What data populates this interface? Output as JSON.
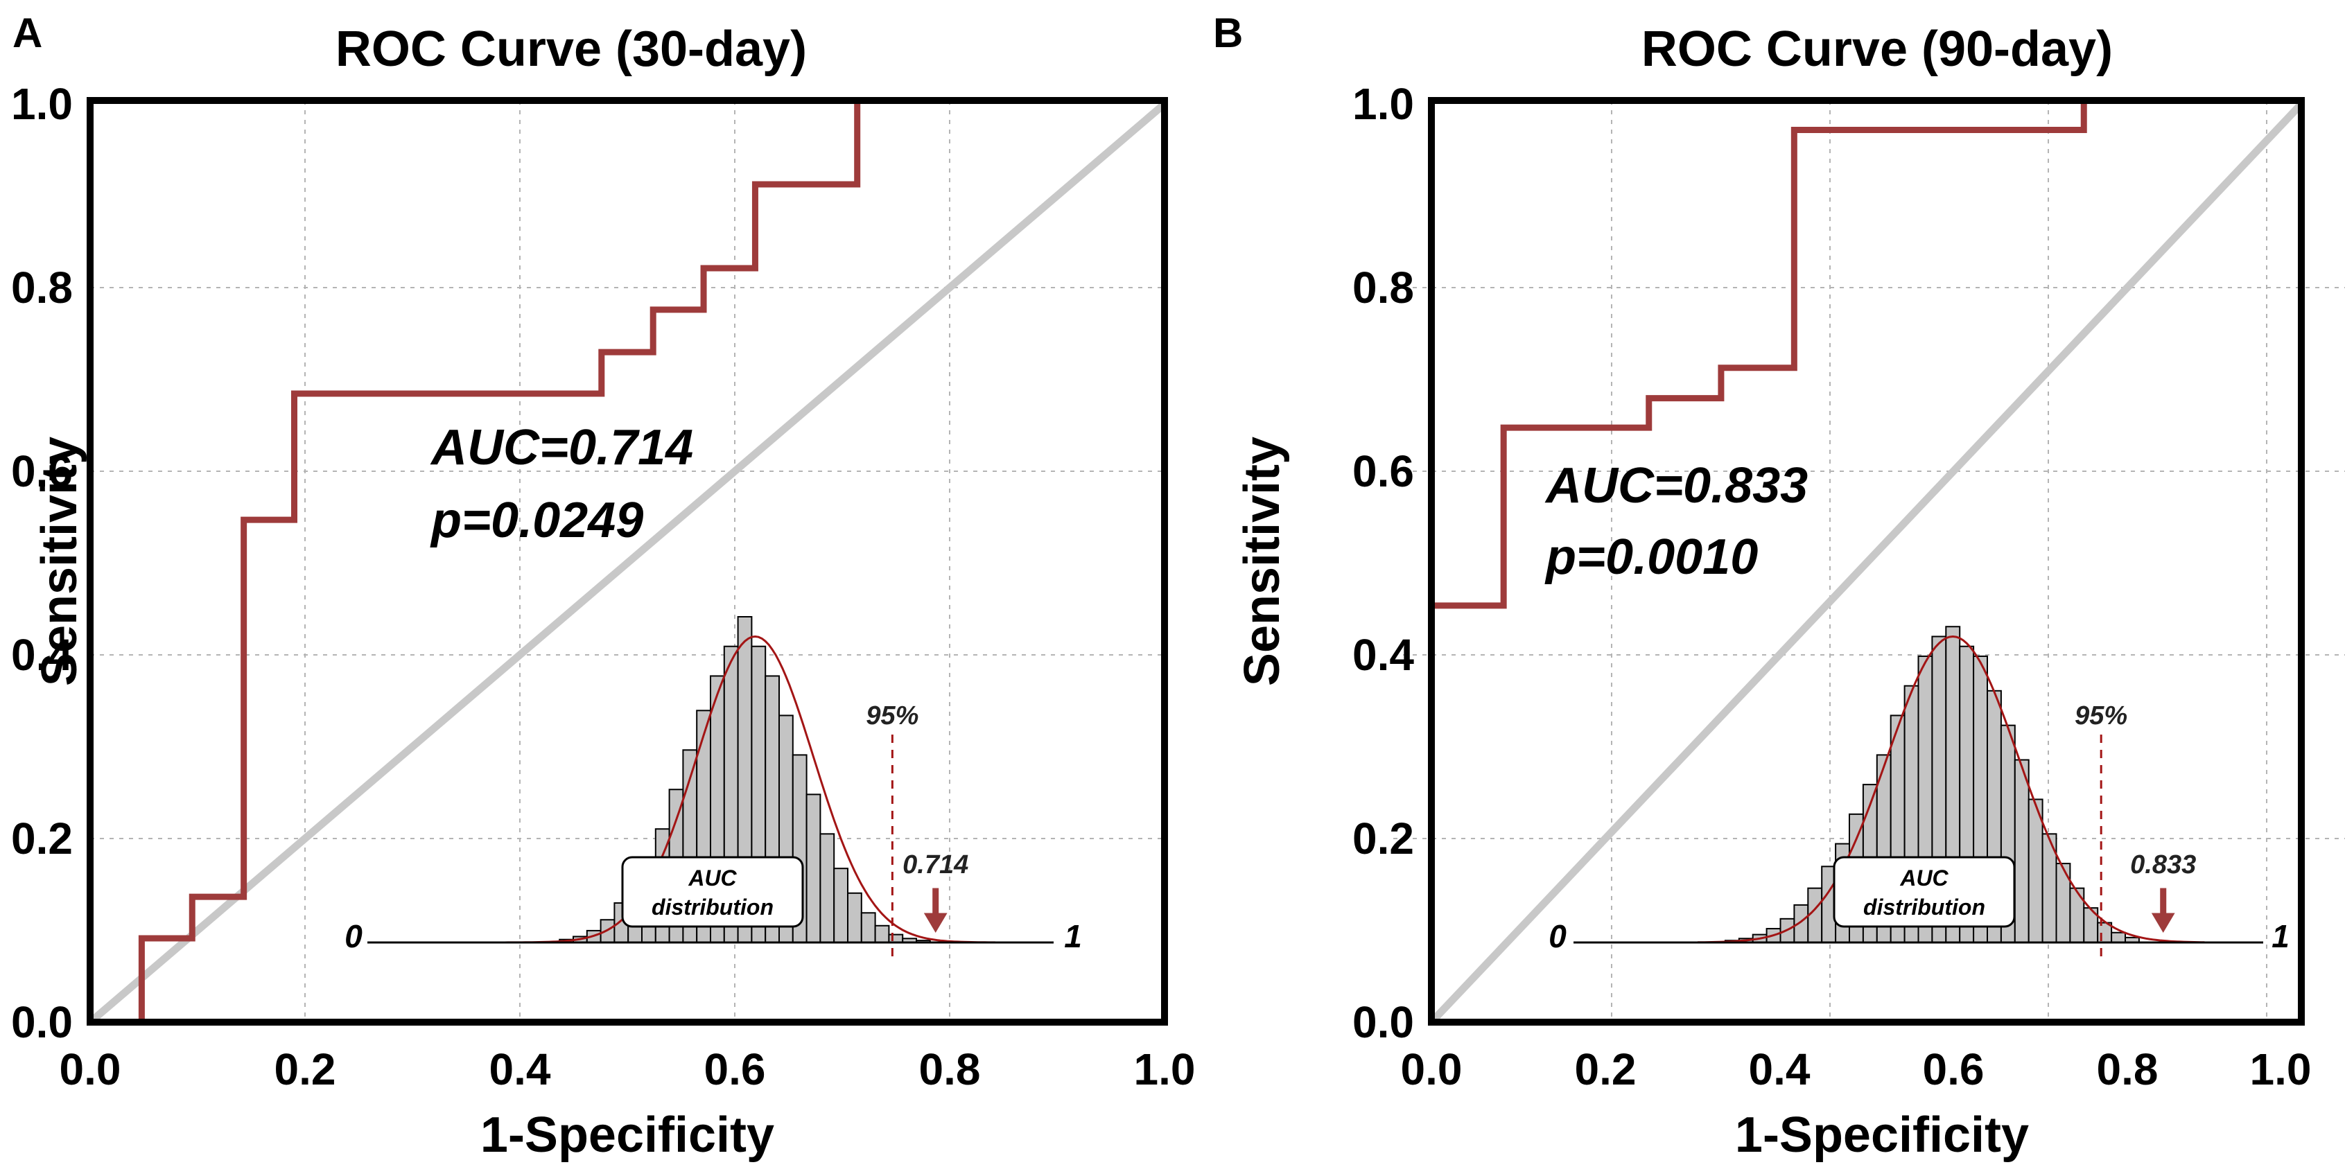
{
  "colors": {
    "roc": "#9e3b3b",
    "diagonal": "#c8c8c8",
    "grid": "#b4b4b4",
    "hist_fill": "#c4c4c4",
    "fit_curve": "#a31515",
    "marker": "#9e3b3b"
  },
  "chart_data": [
    {
      "panel": "A",
      "type": "line",
      "title": "ROC Curve (30-day)",
      "xlabel": "1-Specificity",
      "ylabel": "Sensitivity",
      "xlim": [
        0,
        1
      ],
      "ylim": [
        0,
        1
      ],
      "xticks": [
        "0.0",
        "0.2",
        "0.4",
        "0.6",
        "0.8",
        "1.0"
      ],
      "yticks": [
        "0.0",
        "0.2",
        "0.4",
        "0.6",
        "0.8",
        "1.0"
      ],
      "grid": true,
      "series": [
        {
          "name": "ROC",
          "x": [
            0.048,
            0.048,
            0.095,
            0.095,
            0.143,
            0.143,
            0.19,
            0.19,
            0.476,
            0.476,
            0.524,
            0.524,
            0.571,
            0.571,
            0.619,
            0.619,
            0.714,
            0.714,
            1.0
          ],
          "y": [
            0.0,
            0.091,
            0.091,
            0.136,
            0.136,
            0.545,
            0.545,
            0.682,
            0.682,
            0.727,
            0.727,
            0.773,
            0.773,
            0.818,
            0.818,
            0.909,
            0.909,
            1.0,
            1.0
          ]
        },
        {
          "name": "Reference",
          "x": [
            0,
            1
          ],
          "y": [
            0,
            1
          ]
        }
      ],
      "auc_label": "AUC=0.714",
      "p_label": "p=0.0249",
      "inset": {
        "box_line1": "AUC",
        "box_line2": "distribution",
        "left_label": "0",
        "right_label": "1",
        "percentile_label": "95%",
        "percentile_value": 0.765,
        "observed_label": "0.714",
        "observed_value": 0.828,
        "bin_centers": [
          0.29,
          0.31,
          0.33,
          0.35,
          0.37,
          0.39,
          0.41,
          0.43,
          0.45,
          0.47,
          0.49,
          0.51,
          0.53,
          0.55,
          0.57,
          0.59,
          0.61,
          0.63,
          0.65,
          0.67,
          0.69,
          0.71,
          0.73,
          0.75,
          0.77,
          0.79,
          0.81
        ],
        "bin_heights": [
          0.003,
          0.006,
          0.012,
          0.023,
          0.04,
          0.06,
          0.085,
          0.115,
          0.155,
          0.195,
          0.235,
          0.27,
          0.3,
          0.33,
          0.3,
          0.27,
          0.23,
          0.19,
          0.15,
          0.11,
          0.075,
          0.05,
          0.03,
          0.017,
          0.008,
          0.004,
          0.002
        ],
        "fit_mean": 0.565,
        "fit_sd": 0.085,
        "fit_peak": 0.31
      }
    },
    {
      "panel": "B",
      "type": "line",
      "title": "ROC Curve (90-day)",
      "xlabel": "1-Specificity",
      "ylabel": "Sensitivity",
      "xlim": [
        0,
        1
      ],
      "ylim": [
        0,
        1
      ],
      "xticks": [
        "0.0",
        "0.2",
        "0.4",
        "0.6",
        "0.8",
        "1.0"
      ],
      "yticks": [
        "0.0",
        "0.2",
        "0.4",
        "0.6",
        "0.8",
        "1.0"
      ],
      "grid": true,
      "series": [
        {
          "name": "ROC",
          "x": [
            0.0,
            0.0,
            0.083,
            0.083,
            0.25,
            0.25,
            0.333,
            0.333,
            0.417,
            0.417,
            0.75,
            0.75,
            1.0
          ],
          "y": [
            0.0,
            0.452,
            0.452,
            0.645,
            0.645,
            0.677,
            0.677,
            0.71,
            0.71,
            0.968,
            0.968,
            1.0,
            1.0
          ]
        },
        {
          "name": "Reference",
          "x": [
            0,
            1
          ],
          "y": [
            0,
            1
          ]
        }
      ],
      "auc_label": "AUC=0.833",
      "p_label": "p=0.0010",
      "inset": {
        "box_line1": "AUC",
        "box_line2": "distribution",
        "left_label": "0",
        "right_label": "1",
        "percentile_label": "95%",
        "percentile_value": 0.765,
        "observed_label": "0.833",
        "observed_value": 0.855,
        "bin_centers": [
          0.23,
          0.25,
          0.27,
          0.29,
          0.31,
          0.33,
          0.35,
          0.37,
          0.39,
          0.41,
          0.43,
          0.45,
          0.47,
          0.49,
          0.51,
          0.53,
          0.55,
          0.57,
          0.59,
          0.61,
          0.63,
          0.65,
          0.67,
          0.69,
          0.71,
          0.73,
          0.75,
          0.77,
          0.79,
          0.81
        ],
        "bin_heights": [
          0.002,
          0.004,
          0.008,
          0.014,
          0.024,
          0.038,
          0.055,
          0.077,
          0.1,
          0.13,
          0.16,
          0.19,
          0.23,
          0.26,
          0.29,
          0.31,
          0.32,
          0.3,
          0.29,
          0.255,
          0.22,
          0.185,
          0.145,
          0.11,
          0.08,
          0.055,
          0.035,
          0.02,
          0.01,
          0.005
        ],
        "fit_mean": 0.55,
        "fit_sd": 0.095,
        "fit_peak": 0.31
      }
    }
  ]
}
